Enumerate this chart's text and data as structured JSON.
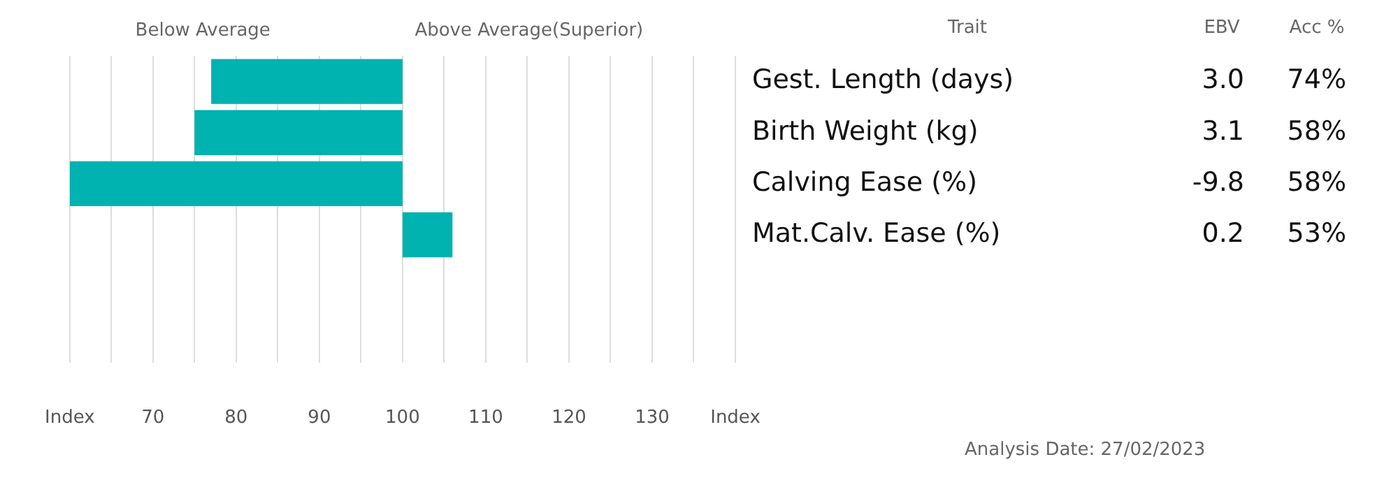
{
  "chart_data": {
    "type": "bar",
    "orientation": "horizontal",
    "categories": [
      "Gest. Length (days)",
      "Birth Weight (kg)",
      "Calving Ease (%)",
      "Mat.Calv. Ease (%)",
      null,
      null
    ],
    "base": [
      100,
      100,
      100,
      100,
      null,
      null
    ],
    "values": [
      -23,
      -25,
      -40,
      6,
      null,
      null
    ],
    "color": "#00b2b0",
    "xlim": [
      60,
      140
    ],
    "xticks": [
      {
        "value": 60,
        "label": "Index"
      },
      {
        "value": 65,
        "label": null
      },
      70,
      {
        "value": 75,
        "label": null
      },
      80,
      {
        "value": 85,
        "label": null
      },
      90,
      {
        "value": 95,
        "label": null
      },
      100,
      {
        "value": 105,
        "label": null
      },
      110,
      {
        "value": 115,
        "label": null
      },
      120,
      {
        "value": 125,
        "label": null
      },
      130,
      {
        "value": 135,
        "label": null
      },
      {
        "value": 140,
        "label": "Index"
      }
    ],
    "grid": "x",
    "legend": false,
    "tick_labels": "x",
    "annotations": [
      "Below Average",
      "Above Average(Superior)",
      "Trait",
      "EBV",
      "Acc %",
      "3.0",
      "3.1",
      "-9.8",
      "0.2",
      "74%",
      "58%",
      "58%",
      "53%",
      "Analysis Date: 27/02/2023"
    ]
  }
}
